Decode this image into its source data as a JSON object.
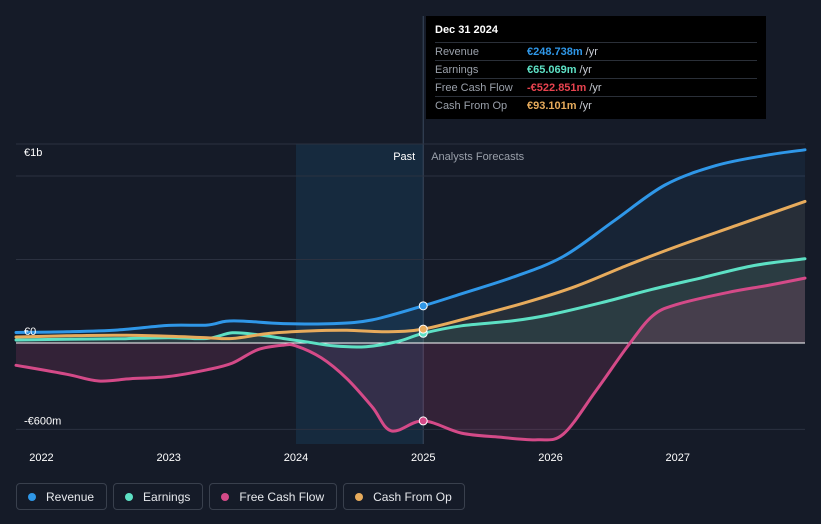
{
  "colors": {
    "revenue": "#2f97e8",
    "earnings": "#5de0c4",
    "fcf": "#d44a88",
    "cfo": "#e7ab5c",
    "background": "#151b28",
    "past_band": "#162a3e",
    "grid": "#2b3140",
    "zero_line": "#ffffff"
  },
  "tooltip": {
    "date": "Dec 31 2024",
    "rows": [
      {
        "label": "Revenue",
        "value": "€248.738m",
        "unit": "/yr",
        "color": "#2f97e8"
      },
      {
        "label": "Earnings",
        "value": "€65.069m",
        "unit": "/yr",
        "color": "#5de0c4"
      },
      {
        "label": "Free Cash Flow",
        "value": "-€522.851m",
        "unit": "/yr",
        "color": "#e8434f"
      },
      {
        "label": "Cash From Op",
        "value": "€93.101m",
        "unit": "/yr",
        "color": "#e7ab5c"
      }
    ]
  },
  "legend": [
    {
      "label": "Revenue",
      "color": "#2f97e8"
    },
    {
      "label": "Earnings",
      "color": "#5de0c4"
    },
    {
      "label": "Free Cash Flow",
      "color": "#d44a88"
    },
    {
      "label": "Cash From Op",
      "color": "#e7ab5c"
    }
  ],
  "chart_data": {
    "type": "line",
    "title": "",
    "xlabel": "",
    "ylabel": "",
    "ylim": [
      -678,
      1335
    ],
    "xlim": [
      2021.8,
      2028.0
    ],
    "y_axis_labels": [
      {
        "value": 1200,
        "label": "€1b"
      },
      {
        "value": 0,
        "label": "€0"
      },
      {
        "value": -600,
        "label": "-€600m"
      }
    ],
    "x_ticks": [
      {
        "value": 2022,
        "label": "2022"
      },
      {
        "value": 2023,
        "label": "2023"
      },
      {
        "value": 2024,
        "label": "2024"
      },
      {
        "value": 2025,
        "label": "2025"
      },
      {
        "value": 2026,
        "label": "2026"
      },
      {
        "value": 2027,
        "label": "2027"
      }
    ],
    "gridlines": [
      1335,
      1120,
      560,
      -580
    ],
    "past_label": "Past",
    "forecast_label": "Analysts Forecasts",
    "divider_x": 2025.0,
    "past_start_x": 2024.0,
    "highlight_x": 2025.0,
    "series": [
      {
        "name": "Revenue",
        "key": "revenue",
        "points": [
          [
            2021.8,
            70
          ],
          [
            2022.2,
            75
          ],
          [
            2022.6,
            87
          ],
          [
            2023.0,
            118
          ],
          [
            2023.3,
            120
          ],
          [
            2023.45,
            146
          ],
          [
            2023.6,
            146
          ],
          [
            2023.9,
            130
          ],
          [
            2024.3,
            130
          ],
          [
            2024.6,
            155
          ],
          [
            2025.0,
            249
          ],
          [
            2025.3,
            330
          ],
          [
            2025.7,
            440
          ],
          [
            2026.1,
            580
          ],
          [
            2026.5,
            820
          ],
          [
            2026.9,
            1060
          ],
          [
            2027.3,
            1190
          ],
          [
            2027.7,
            1260
          ],
          [
            2028.0,
            1296
          ]
        ]
      },
      {
        "name": "Earnings",
        "key": "earnings",
        "points": [
          [
            2021.8,
            20
          ],
          [
            2022.2,
            25
          ],
          [
            2022.6,
            28
          ],
          [
            2023.0,
            35
          ],
          [
            2023.3,
            30
          ],
          [
            2023.5,
            68
          ],
          [
            2023.7,
            55
          ],
          [
            2023.9,
            30
          ],
          [
            2024.1,
            5
          ],
          [
            2024.3,
            -20
          ],
          [
            2024.55,
            -25
          ],
          [
            2024.8,
            10
          ],
          [
            2025.0,
            65
          ],
          [
            2025.3,
            115
          ],
          [
            2025.7,
            148
          ],
          [
            2026.0,
            190
          ],
          [
            2026.4,
            270
          ],
          [
            2026.8,
            360
          ],
          [
            2027.2,
            440
          ],
          [
            2027.6,
            520
          ],
          [
            2028.0,
            565
          ]
        ]
      },
      {
        "name": "Free Cash Flow",
        "key": "fcf",
        "points": [
          [
            2021.8,
            -150
          ],
          [
            2022.2,
            -210
          ],
          [
            2022.45,
            -255
          ],
          [
            2022.7,
            -240
          ],
          [
            2023.0,
            -225
          ],
          [
            2023.3,
            -180
          ],
          [
            2023.5,
            -135
          ],
          [
            2023.7,
            -45
          ],
          [
            2023.9,
            -15
          ],
          [
            2024.0,
            -20
          ],
          [
            2024.2,
            -100
          ],
          [
            2024.4,
            -240
          ],
          [
            2024.6,
            -430
          ],
          [
            2024.75,
            -590
          ],
          [
            2025.0,
            -523
          ],
          [
            2025.3,
            -605
          ],
          [
            2025.6,
            -632
          ],
          [
            2025.9,
            -650
          ],
          [
            2026.1,
            -612
          ],
          [
            2026.35,
            -330
          ],
          [
            2026.6,
            -30
          ],
          [
            2026.8,
            180
          ],
          [
            2027.0,
            260
          ],
          [
            2027.4,
            340
          ],
          [
            2027.7,
            385
          ],
          [
            2028.0,
            435
          ]
        ]
      },
      {
        "name": "Cash From Op",
        "key": "cfo",
        "points": [
          [
            2021.8,
            40
          ],
          [
            2022.2,
            48
          ],
          [
            2022.6,
            52
          ],
          [
            2023.0,
            45
          ],
          [
            2023.3,
            35
          ],
          [
            2023.5,
            30
          ],
          [
            2023.8,
            65
          ],
          [
            2024.1,
            80
          ],
          [
            2024.4,
            85
          ],
          [
            2024.7,
            75
          ],
          [
            2025.0,
            93
          ],
          [
            2025.4,
            178
          ],
          [
            2025.8,
            270
          ],
          [
            2026.2,
            380
          ],
          [
            2026.6,
            520
          ],
          [
            2027.0,
            650
          ],
          [
            2027.5,
            800
          ],
          [
            2028.0,
            950
          ]
        ]
      }
    ]
  }
}
